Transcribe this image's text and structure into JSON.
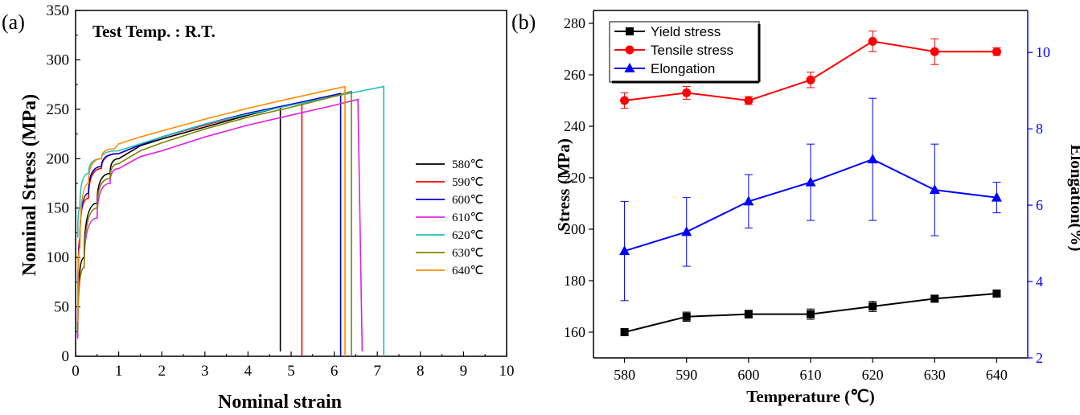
{
  "chart_data": [
    {
      "panel_label": "(a)",
      "type": "line",
      "annotation": "Test Temp. : R.T.",
      "xlabel": "Nominal strain",
      "ylabel": "Nominal Stress (MPa)",
      "xlim": [
        0,
        10
      ],
      "ylim": [
        0,
        350
      ],
      "xticks": [
        "0",
        "1",
        "2",
        "3",
        "4",
        "5",
        "6",
        "7",
        "8",
        "9",
        "10"
      ],
      "yticks": [
        "0",
        "50",
        "100",
        "150",
        "200",
        "250",
        "300",
        "350"
      ],
      "grid": false,
      "legend_position": "right",
      "series": [
        {
          "name": "580℃",
          "color": "#000000",
          "x": [
            0.05,
            0.2,
            0.5,
            0.8,
            1.0,
            1.5,
            2,
            3,
            4,
            4.75,
            4.75
          ],
          "y": [
            30,
            100,
            155,
            185,
            200,
            213,
            220,
            232,
            244,
            252,
            5
          ]
        },
        {
          "name": "590℃",
          "color": "#ff0000",
          "x": [
            0.05,
            0.1,
            0.3,
            0.6,
            1.0,
            1.5,
            2,
            3,
            4,
            5.25,
            5.25
          ],
          "y": [
            20,
            120,
            160,
            190,
            205,
            214,
            222,
            234,
            245,
            257,
            0
          ]
        },
        {
          "name": "600℃",
          "color": "#0000cc",
          "x": [
            0.05,
            0.1,
            0.3,
            0.6,
            1.0,
            1.5,
            2,
            3,
            4,
            5,
            6.15,
            6.15
          ],
          "y": [
            20,
            115,
            165,
            192,
            205,
            214,
            222,
            235,
            246,
            255,
            266,
            0
          ]
        },
        {
          "name": "610℃",
          "color": "#e020e0",
          "x": [
            0.05,
            0.2,
            0.5,
            0.8,
            1.0,
            1.5,
            2,
            3,
            4,
            5,
            6,
            6.55,
            6.65
          ],
          "y": [
            18,
            90,
            140,
            175,
            190,
            202,
            208,
            222,
            234,
            244,
            254,
            260,
            5
          ]
        },
        {
          "name": "620℃",
          "color": "#20c0c0",
          "x": [
            0.05,
            0.1,
            0.3,
            0.6,
            1.0,
            1.5,
            2,
            3,
            4,
            5,
            6,
            7.15,
            7.15
          ],
          "y": [
            120,
            150,
            185,
            200,
            208,
            215,
            222,
            235,
            245,
            254,
            263,
            273,
            0
          ]
        },
        {
          "name": "630℃",
          "color": "#808000",
          "x": [
            0.05,
            0.2,
            0.5,
            0.8,
            1.0,
            1.5,
            2,
            3,
            4,
            5,
            6,
            6.4,
            6.4
          ],
          "y": [
            25,
            90,
            150,
            180,
            195,
            208,
            216,
            230,
            242,
            252,
            263,
            268,
            0
          ]
        },
        {
          "name": "640℃",
          "color": "#ff8c00",
          "x": [
            0.05,
            0.1,
            0.3,
            0.6,
            0.9,
            1.0,
            1.5,
            2,
            3,
            4,
            5,
            6.25,
            6.25
          ],
          "y": [
            35,
            110,
            175,
            200,
            210,
            215,
            222,
            228,
            240,
            251,
            261,
            273,
            0
          ]
        }
      ]
    },
    {
      "panel_label": "(b)",
      "type": "line",
      "xlabel": "Temperature (℃)",
      "ylabel": "Stress (MPa)",
      "y2label": "Elongation(%)",
      "categories": [
        "580",
        "590",
        "600",
        "610",
        "620",
        "630",
        "640"
      ],
      "x": [
        580,
        590,
        600,
        610,
        620,
        630,
        640
      ],
      "xlim": [
        575,
        645
      ],
      "ylim": [
        150,
        285
      ],
      "y2lim": [
        2,
        11.1
      ],
      "yticks": [
        "160",
        "180",
        "200",
        "220",
        "240",
        "260",
        "280"
      ],
      "y2ticks": [
        "2",
        "4",
        "6",
        "8",
        "10"
      ],
      "grid": false,
      "legend_position": "top-left",
      "series": [
        {
          "name": "Yield stress",
          "color": "#000000",
          "marker": "square",
          "axis": "left",
          "values": [
            160,
            166,
            167,
            167,
            170,
            173,
            175
          ],
          "errors": [
            1.2,
            1.8,
            1.5,
            2.0,
            2.0,
            1.2,
            1.2
          ]
        },
        {
          "name": "Tensile stress",
          "color": "#ff0000",
          "marker": "circle",
          "axis": "left",
          "values": [
            250,
            253,
            250,
            258,
            273,
            269,
            269
          ],
          "errors": [
            3.0,
            2.5,
            1.5,
            3.0,
            4.0,
            5.0,
            1.5
          ]
        },
        {
          "name": "Elongation",
          "color": "#0000ff",
          "marker": "triangle",
          "axis": "right",
          "values": [
            4.8,
            5.3,
            6.1,
            6.6,
            7.2,
            6.4,
            6.2
          ],
          "errors": [
            1.3,
            0.9,
            0.7,
            1.0,
            1.6,
            1.2,
            0.4
          ]
        }
      ]
    }
  ]
}
